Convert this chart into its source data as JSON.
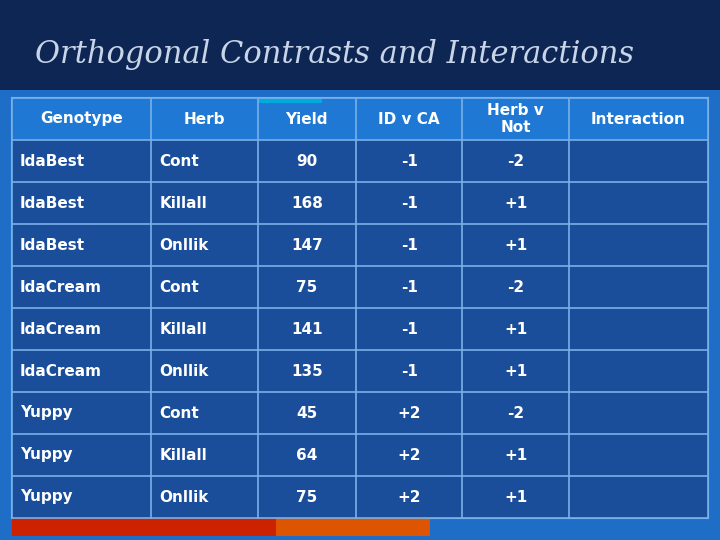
{
  "title": "Orthogonal Contrasts and Interactions",
  "title_color": "#c8d4e8",
  "title_fontsize": 22,
  "bg_color": "#1e6ec8",
  "title_band_color": "#0a1a40",
  "table_bg": "#1e5fa8",
  "header_row": [
    "Genotype",
    "Herb",
    "Yield",
    "ID v CA",
    "Herb v\nNot",
    "Interaction"
  ],
  "rows": [
    [
      "IdaBest",
      "Cont",
      "90",
      "-1",
      "-2",
      ""
    ],
    [
      "IdaBest",
      "Killall",
      "168",
      "-1",
      "+1",
      ""
    ],
    [
      "IdaBest",
      "Onllik",
      "147",
      "-1",
      "+1",
      ""
    ],
    [
      "IdaCream",
      "Cont",
      "75",
      "-1",
      "-2",
      ""
    ],
    [
      "IdaCream",
      "Killall",
      "141",
      "-1",
      "+1",
      ""
    ],
    [
      "IdaCream",
      "Onllik",
      "135",
      "-1",
      "+1",
      ""
    ],
    [
      "Yuppy",
      "Cont",
      "45",
      "+2",
      "-2",
      ""
    ],
    [
      "Yuppy",
      "Killall",
      "64",
      "+2",
      "+1",
      ""
    ],
    [
      "Yuppy",
      "Onllik",
      "75",
      "+2",
      "+1",
      ""
    ]
  ],
  "col_widths": [
    1.7,
    1.3,
    1.2,
    1.3,
    1.3,
    1.7
  ],
  "header_bg": "#1e78d4",
  "cell_bg": "#1a4d9a",
  "line_color": "#7ab0e8",
  "text_color": "#ffffff",
  "header_text_color": "#ffffff",
  "bottom_bar_left": "#cc2200",
  "bottom_bar_right": "#dd5500"
}
